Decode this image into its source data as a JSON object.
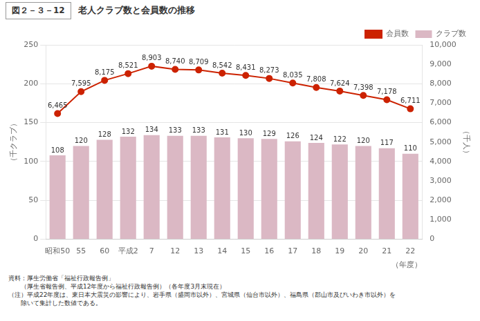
{
  "chart_data": {
    "type": "bar",
    "title": "老人クラブ数と会員数の推移",
    "subtitle": "図２－３－12",
    "x_label": "（年度）",
    "y_label": "（千クラブ）",
    "y2_label": "（千人）",
    "categories": [
      "昭和50",
      "55",
      "60",
      "平成2",
      "7",
      "12",
      "13",
      "14",
      "15",
      "16",
      "17",
      "18",
      "19",
      "20",
      "21",
      "22"
    ],
    "series": [
      {
        "name": "クラブ数",
        "type": "bar",
        "color": "#dbb8c4",
        "values": [
          108,
          120,
          128,
          132,
          134,
          133,
          133,
          131,
          130,
          129,
          126,
          124,
          122,
          120,
          117,
          110
        ]
      },
      {
        "name": "会員数",
        "type": "line",
        "axis": "y2",
        "color": "#cc2200",
        "marker": "circle",
        "values": [
          6465,
          7595,
          8175,
          8521,
          8903,
          8740,
          8709,
          8542,
          8431,
          8273,
          8035,
          7808,
          7624,
          7398,
          7178,
          6711
        ],
        "value_labels": [
          "6,465",
          "7,595",
          "8,175",
          "8,521",
          "8,903",
          "8,740",
          "8,709",
          "8,542",
          "8,431",
          "8,273",
          "8,035",
          "7,808",
          "7,624",
          "7,398",
          "7,178",
          "6,711"
        ]
      }
    ],
    "ylim": [
      0,
      250
    ],
    "yticks": [
      0,
      50,
      100,
      150,
      200,
      250
    ],
    "y2lim": [
      0,
      10000
    ],
    "y2ticks": [
      0,
      {
        "value": 1000,
        "label": "1,000"
      },
      {
        "value": 2000,
        "label": "2,000"
      },
      {
        "value": 3000,
        "label": "3,000"
      },
      {
        "value": 4000,
        "label": "4,000"
      },
      {
        "value": 5000,
        "label": "5,000"
      },
      {
        "value": 6000,
        "label": "6,000"
      },
      {
        "value": 7000,
        "label": "7,000"
      },
      {
        "value": 8000,
        "label": "8,000"
      },
      {
        "value": 9000,
        "label": "9,000"
      },
      {
        "value": 10000,
        "label": "10,000"
      }
    ],
    "grid": true,
    "legend": "upper right",
    "data_labels": true,
    "annotations": [
      "資料：厚生労働省「福祉行政報告例」",
      "　　（厚生省報告例、平成12年度から福祉行政報告例）（各年度3月末現在）",
      "（注）平成22年度は、東日本大震災の影響により、岩手県（盛岡市以外）、宮城県（仙台市以外）、福島県（郡山市及びいわき市以外）を",
      "　　除いて集計した数値である。"
    ]
  }
}
